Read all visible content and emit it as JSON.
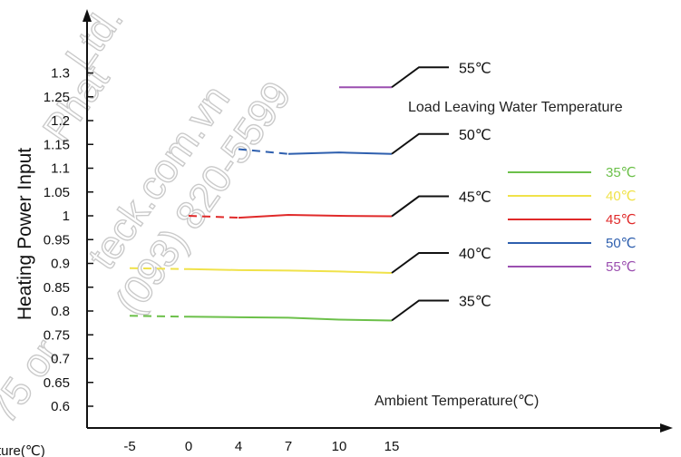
{
  "chart_data": {
    "type": "line",
    "ylabel": "Heating Power Input",
    "xlabel": "Ambient Temperature(℃)",
    "partial_label": "ture(℃)",
    "legend_title": "Load Leaving Water Temperature",
    "x_ticks": [
      "-5",
      "0",
      "4",
      "7",
      "10",
      "15"
    ],
    "y_ticks": [
      "0.6",
      "0.65",
      "0.7",
      "0.75",
      "0.8",
      "0.85",
      "0.9",
      "0.95",
      "1",
      "1.05",
      "1.1",
      "1.15",
      "1.2",
      "1.25",
      "1.3"
    ],
    "ylim": [
      0.55,
      1.35
    ],
    "series": [
      {
        "name": "35℃",
        "color": "#6cc04a",
        "points": [
          [
            -5,
            0.79
          ],
          [
            0,
            0.788
          ],
          [
            4,
            0.787
          ],
          [
            7,
            0.786
          ],
          [
            10,
            0.782
          ],
          [
            15,
            0.78
          ]
        ]
      },
      {
        "name": "40℃",
        "color": "#f0e24a",
        "points": [
          [
            -5,
            0.89
          ],
          [
            0,
            0.888
          ],
          [
            4,
            0.886
          ],
          [
            7,
            0.885
          ],
          [
            10,
            0.883
          ],
          [
            15,
            0.88
          ]
        ]
      },
      {
        "name": "45℃",
        "color": "#e02a2a",
        "points": [
          [
            0,
            1.0
          ],
          [
            4,
            0.996
          ],
          [
            7,
            1.002
          ],
          [
            10,
            1.0
          ],
          [
            15,
            0.999
          ]
        ]
      },
      {
        "name": "50℃",
        "color": "#2e5fae",
        "points": [
          [
            4,
            1.14
          ],
          [
            7,
            1.13
          ],
          [
            10,
            1.133
          ],
          [
            15,
            1.13
          ]
        ]
      },
      {
        "name": "55℃",
        "color": "#9b4fb0",
        "points": [
          [
            10,
            1.27
          ],
          [
            15,
            1.27
          ]
        ]
      }
    ],
    "dashed_segment": "first segment of each series"
  },
  "watermarks": [
    "Phat",
    "Ltd.",
    "teck.com.vn",
    "(093) 820-5599",
    "or",
    "75"
  ]
}
